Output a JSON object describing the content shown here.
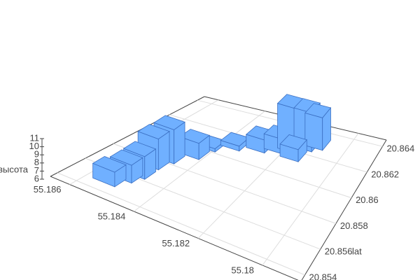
{
  "chart_data": {
    "type": "bar3d",
    "x": [
      55.18543,
      55.1852,
      55.18504,
      55.18504,
      55.18488,
      55.18442,
      55.18426,
      55.18364,
      55.18286,
      55.18231,
      55.18192,
      55.18145,
      55.18114,
      55.1816
    ],
    "y": [
      20.85515,
      20.85592,
      20.85658,
      20.85768,
      20.85856,
      20.85955,
      20.86054,
      20.8612,
      20.86164,
      20.86197,
      20.8623,
      20.86274,
      20.86307,
      20.86175
    ],
    "z": [
      7.8,
      8.2,
      8.8,
      9.8,
      10.2,
      8,
      6.4,
      6.6,
      7.6,
      7.8,
      11.5,
      10.8,
      10,
      7.5
    ],
    "color": "#70b0ff",
    "xlim": [
      55.1788,
      55.1866
    ],
    "xticks": [
      55.18,
      55.182,
      55.184,
      55.186
    ],
    "ylim": [
      20.8535,
      20.8645
    ],
    "yticks": [
      20.854,
      20.856,
      20.858,
      20.86,
      20.862,
      20.864
    ],
    "zlim": [
      6,
      11
    ],
    "zticks": [
      6,
      7,
      8,
      9,
      10,
      11
    ],
    "y_label": "lat",
    "z_label": "высота",
    "grid": true
  }
}
